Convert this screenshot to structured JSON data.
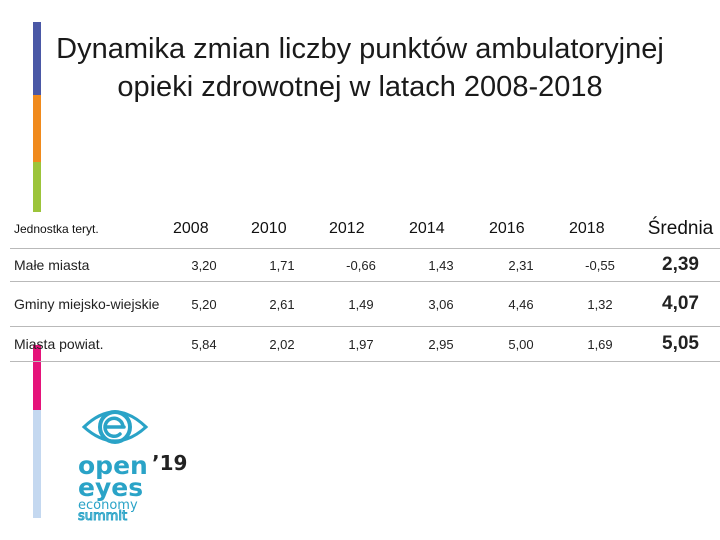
{
  "colors": {
    "stripe_top": "#4a58a6",
    "stripe_orange": "#f08a1c",
    "stripe_green": "#9cc43a",
    "stripe_pink": "#e5137a",
    "stripe_light": "#c4d8f0",
    "logo": "#2aa3c7"
  },
  "title": {
    "line1": "Dynamika zmian liczby punktów ambulatoryjnej",
    "line2": "opieki zdrowotnej w latach 2008-2018"
  },
  "table": {
    "headers": [
      "Jednostka teryt.",
      "2008",
      "2010",
      "2012",
      "2014",
      "2016",
      "2018",
      "Średnia"
    ],
    "rows": [
      {
        "label": "Małe miasta",
        "values": [
          "3,20",
          "1,71",
          "-0,66",
          "1,43",
          "2,31",
          "-0,55"
        ],
        "avg": "2,39"
      },
      {
        "label": "Gminy miejsko-wiejskie",
        "values": [
          "5,20",
          "2,61",
          "1,49",
          "3,06",
          "4,46",
          "1,32"
        ],
        "avg": "4,07"
      },
      {
        "label": "Miasta powiat.",
        "values": [
          "5,84",
          "2,02",
          "1,97",
          "2,95",
          "5,00",
          "1,69"
        ],
        "avg": "5,05"
      }
    ]
  },
  "logo": {
    "open": "open",
    "year": "’19",
    "eyes": "eyes",
    "economy": "economy",
    "summit": "summit",
    "icon": "eye-e-icon"
  }
}
